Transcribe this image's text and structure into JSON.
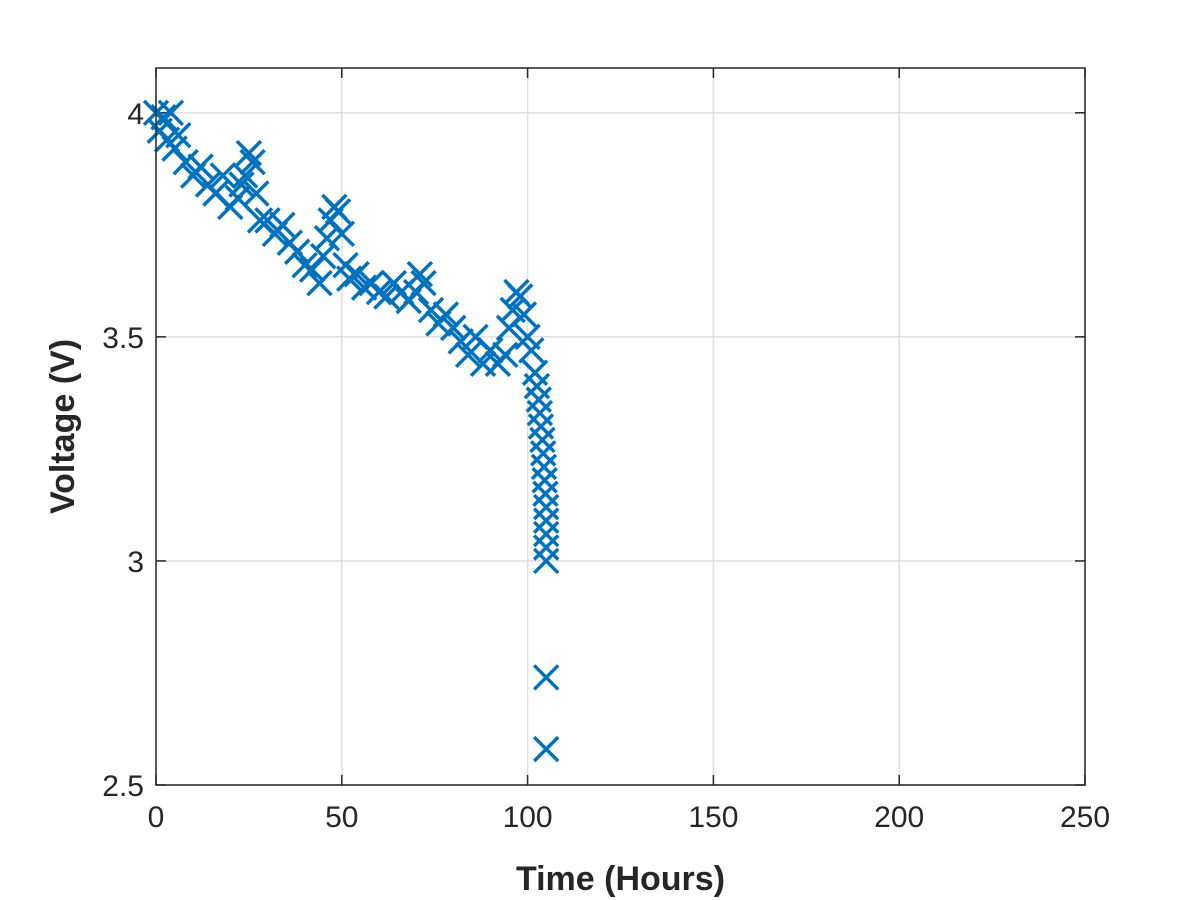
{
  "chart_data": {
    "type": "scatter",
    "title": "",
    "xlabel": "Time (Hours)",
    "ylabel": "Voltage (V)",
    "xlim": [
      0,
      250
    ],
    "ylim": [
      2.5,
      4.1
    ],
    "xticks": [
      0,
      50,
      100,
      150,
      200,
      250
    ],
    "xtick_labels": [
      "0",
      "50",
      "100",
      "150",
      "200",
      "250"
    ],
    "yticks": [
      2.5,
      3,
      3.5,
      4
    ],
    "ytick_labels": [
      "2.5",
      "3",
      "3.5",
      "4"
    ],
    "grid": true,
    "legend": "none",
    "marker": "x",
    "color": "#0072BD",
    "series": [
      {
        "x": [
          0,
          1,
          2,
          3,
          4,
          5,
          6,
          8,
          10,
          12,
          14,
          16,
          18,
          20,
          22,
          23,
          24,
          25,
          26,
          27,
          28,
          30,
          32,
          34,
          36,
          38,
          40,
          42,
          44,
          45,
          46,
          47,
          48,
          49,
          50,
          51,
          52,
          54,
          56,
          58,
          60,
          62,
          64,
          66,
          68,
          70,
          71,
          72,
          74,
          76,
          78,
          80,
          82,
          84,
          86,
          88,
          90,
          92,
          94,
          95,
          96,
          97,
          98,
          99,
          100,
          101,
          102,
          102.5,
          103,
          103.3,
          103.6,
          104,
          104.2,
          104.4,
          104.6,
          104.8,
          105,
          105,
          105,
          105,
          105,
          105,
          105
        ],
        "y": [
          4.0,
          3.96,
          3.99,
          3.94,
          4.0,
          3.92,
          3.95,
          3.89,
          3.86,
          3.88,
          3.84,
          3.82,
          3.86,
          3.79,
          3.81,
          3.84,
          3.86,
          3.91,
          3.89,
          3.82,
          3.76,
          3.76,
          3.73,
          3.75,
          3.71,
          3.69,
          3.66,
          3.65,
          3.62,
          3.68,
          3.72,
          3.76,
          3.79,
          3.78,
          3.73,
          3.66,
          3.63,
          3.64,
          3.61,
          3.62,
          3.6,
          3.59,
          3.62,
          3.6,
          3.58,
          3.6,
          3.64,
          3.62,
          3.56,
          3.53,
          3.55,
          3.52,
          3.49,
          3.46,
          3.5,
          3.44,
          3.47,
          3.44,
          3.46,
          3.52,
          3.56,
          3.6,
          3.59,
          3.55,
          3.5,
          3.47,
          3.42,
          3.39,
          3.36,
          3.33,
          3.3,
          3.27,
          3.24,
          3.21,
          3.18,
          3.15,
          3.12,
          3.09,
          3.06,
          3.03,
          3.0,
          2.74,
          2.58
        ]
      }
    ]
  }
}
